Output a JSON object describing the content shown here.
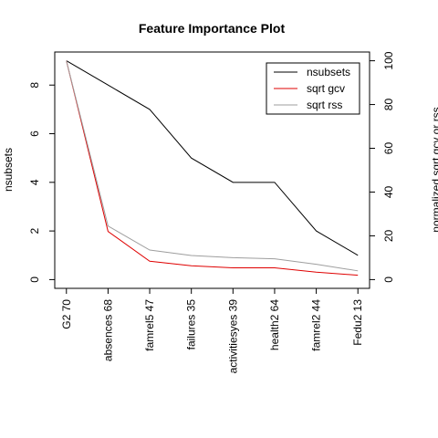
{
  "chart_data": {
    "type": "line",
    "title": "Feature Importance Plot",
    "y_label": "nsubsets",
    "y2_label": "normalized sqrt gcv or rss",
    "categories": [
      "G2 70",
      "absences 68",
      "famrel5 47",
      "failures 35",
      "activitiesyes 39",
      "health2 64",
      "famrel2 44",
      "Fedu2 13"
    ],
    "series": [
      {
        "name": "nsubsets",
        "color": "#000000",
        "values": [
          9,
          8,
          7,
          5,
          4,
          4,
          2,
          1
        ]
      },
      {
        "name": "sqrt gcv",
        "color": "#df0000",
        "axis": "y2",
        "values": [
          100,
          22,
          8.4,
          6.3,
          5.4,
          5.4,
          3.4,
          2
        ]
      },
      {
        "name": "sqrt rss",
        "color": "#9e9e9e",
        "axis": "y2",
        "values": [
          100,
          24.5,
          13.5,
          11,
          10,
          9.5,
          7,
          4
        ]
      }
    ],
    "ylim": [
      -0.36,
      9.36
    ],
    "yticks": [
      0,
      2,
      4,
      6,
      8
    ],
    "y2lim": [
      -4,
      104
    ],
    "y2ticks": [
      0,
      20,
      40,
      60,
      80,
      100
    ],
    "legend": "topright"
  }
}
